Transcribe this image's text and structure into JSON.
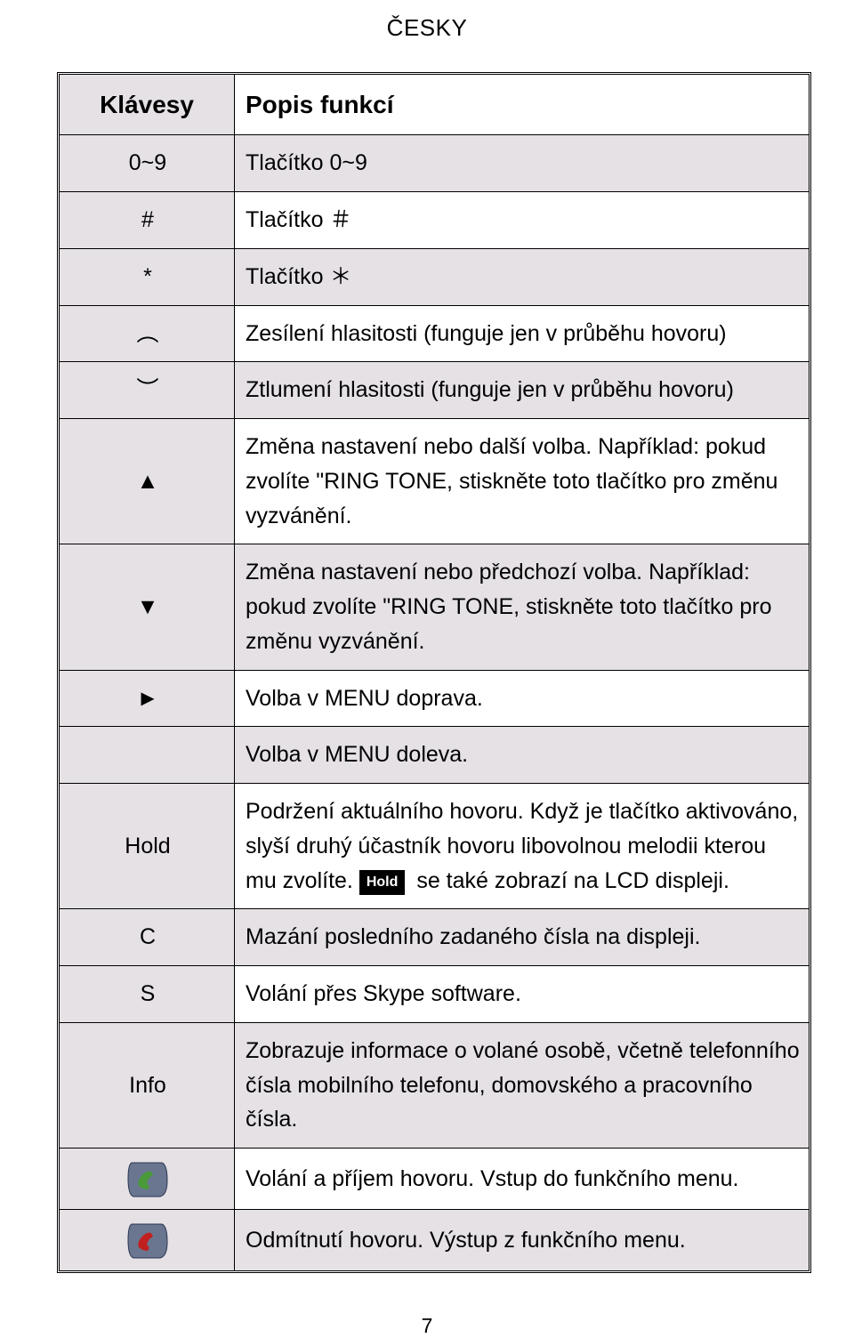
{
  "heading": "ČESKY",
  "header": {
    "keys": "Klávesy",
    "desc": "Popis funkcí"
  },
  "rows": [
    {
      "key": "0~9",
      "desc": "Tlačítko 0~9",
      "shadedDesc": true
    },
    {
      "key": "#",
      "desc": "Tlačítko ＃",
      "shadedDesc": false
    },
    {
      "key": "*",
      "desc": "Tlačítko ＊",
      "shadedDesc": true
    },
    {
      "key": "︵",
      "desc": "Zesílení hlasitosti (funguje jen v průběhu hovoru)",
      "shadedDesc": false
    },
    {
      "key": "︶",
      "desc": "Ztlumení hlasitosti (funguje jen v průběhu hovoru)",
      "shadedDesc": true
    },
    {
      "key": "▲",
      "desc": "Změna nastavení nebo další volba. Například: pokud zvolíte \"RING TONE, stiskněte toto tlačítko pro změnu vyzvánění.",
      "shadedDesc": false
    },
    {
      "key": "▼",
      "desc": "Změna nastavení nebo předchozí volba. Například: pokud zvolíte \"RING TONE, stiskněte toto tlačítko pro změnu vyzvánění.",
      "shadedDesc": true
    },
    {
      "key": "►",
      "desc": "Volba v MENU doprava.",
      "shadedDesc": false
    },
    {
      "key": "",
      "desc": "Volba v MENU doleva.",
      "shadedDesc": true
    },
    {
      "key": "Hold",
      "descPre": "Podržení aktuálního hovoru. Když je tlačítko aktivováno, slyší druhý účastník hovoru libovolnou melodii kterou mu zvolíte.",
      "holdChip": "Hold",
      "descPost": " se také zobrazí na LCD displeji.",
      "shadedDesc": false,
      "isHold": true
    },
    {
      "key": "C",
      "desc": "Mazání posledního zadaného čísla na displeji.",
      "shadedDesc": true
    },
    {
      "key": "S",
      "desc": "Volání přes Skype software.",
      "shadedDesc": false
    },
    {
      "key": "Info",
      "desc": "Zobrazuje informace o volané osobě, včetně telefonního čísla mobilního telefonu, domovského a pracovního čísla.",
      "shadedDesc": true
    },
    {
      "key": "icon-green",
      "desc": "Volání a příjem hovoru. Vstup do funkčního menu.",
      "shadedDesc": false,
      "iconColor": "#4a9a3a"
    },
    {
      "key": "icon-red",
      "desc": "Odmítnutí hovoru. Výstup z funkčního menu.",
      "shadedDesc": true,
      "iconColor": "#c02020"
    }
  ],
  "pageNum": "7"
}
